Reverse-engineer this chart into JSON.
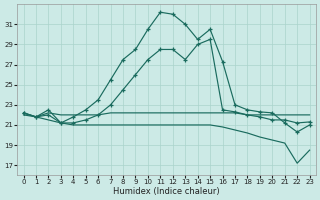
{
  "xlabel": "Humidex (Indice chaleur)",
  "background_color": "#cceae6",
  "grid_color": "#aad4cc",
  "line_color": "#1a6b5e",
  "xlim": [
    -0.5,
    23.5
  ],
  "ylim": [
    16.0,
    33.0
  ],
  "yticks": [
    17,
    19,
    21,
    23,
    25,
    27,
    29,
    31
  ],
  "xticks": [
    0,
    1,
    2,
    3,
    4,
    5,
    6,
    7,
    8,
    9,
    10,
    11,
    12,
    13,
    14,
    15,
    16,
    17,
    18,
    19,
    20,
    21,
    22,
    23
  ],
  "curve_main_x": [
    0,
    1,
    2,
    3,
    4,
    5,
    6,
    7,
    8,
    9,
    10,
    11,
    12,
    13,
    14,
    15,
    16,
    17,
    18,
    19,
    20,
    21,
    22,
    23
  ],
  "curve_main_y": [
    22.2,
    21.8,
    22.5,
    21.2,
    21.8,
    22.5,
    23.5,
    25.5,
    27.5,
    28.5,
    30.5,
    32.2,
    32.0,
    31.0,
    29.5,
    30.5,
    27.3,
    23.0,
    22.5,
    22.3,
    22.2,
    21.2,
    20.3,
    21.0
  ],
  "curve_mid_x": [
    0,
    1,
    2,
    3,
    4,
    5,
    6,
    7,
    8,
    9,
    10,
    11,
    12,
    13,
    14,
    15,
    16,
    17,
    18,
    19,
    20,
    21,
    22,
    23
  ],
  "curve_mid_y": [
    22.2,
    21.8,
    22.0,
    21.2,
    21.2,
    21.5,
    22.0,
    23.0,
    24.5,
    26.0,
    27.5,
    28.5,
    28.5,
    27.5,
    29.0,
    29.5,
    22.5,
    22.3,
    22.0,
    21.8,
    21.5,
    21.5,
    21.2,
    21.3
  ],
  "curve_flat_x": [
    0,
    1,
    2,
    3,
    4,
    5,
    6,
    7,
    8,
    9,
    10,
    11,
    12,
    13,
    14,
    15,
    16,
    17,
    18,
    19,
    20,
    21,
    22,
    23
  ],
  "curve_flat_y": [
    22.2,
    21.8,
    22.2,
    22.0,
    22.0,
    22.0,
    22.0,
    22.2,
    22.2,
    22.2,
    22.2,
    22.2,
    22.2,
    22.2,
    22.2,
    22.2,
    22.2,
    22.2,
    22.0,
    22.0,
    22.0,
    22.0,
    22.0,
    22.0
  ],
  "curve_decline_x": [
    0,
    1,
    2,
    3,
    4,
    5,
    6,
    7,
    8,
    9,
    10,
    11,
    12,
    13,
    14,
    15,
    16,
    17,
    18,
    19,
    20,
    21,
    22,
    23
  ],
  "curve_decline_y": [
    22.0,
    21.8,
    21.5,
    21.2,
    21.0,
    21.0,
    21.0,
    21.0,
    21.0,
    21.0,
    21.0,
    21.0,
    21.0,
    21.0,
    21.0,
    21.0,
    20.8,
    20.5,
    20.2,
    19.8,
    19.5,
    19.2,
    17.2,
    18.5
  ]
}
